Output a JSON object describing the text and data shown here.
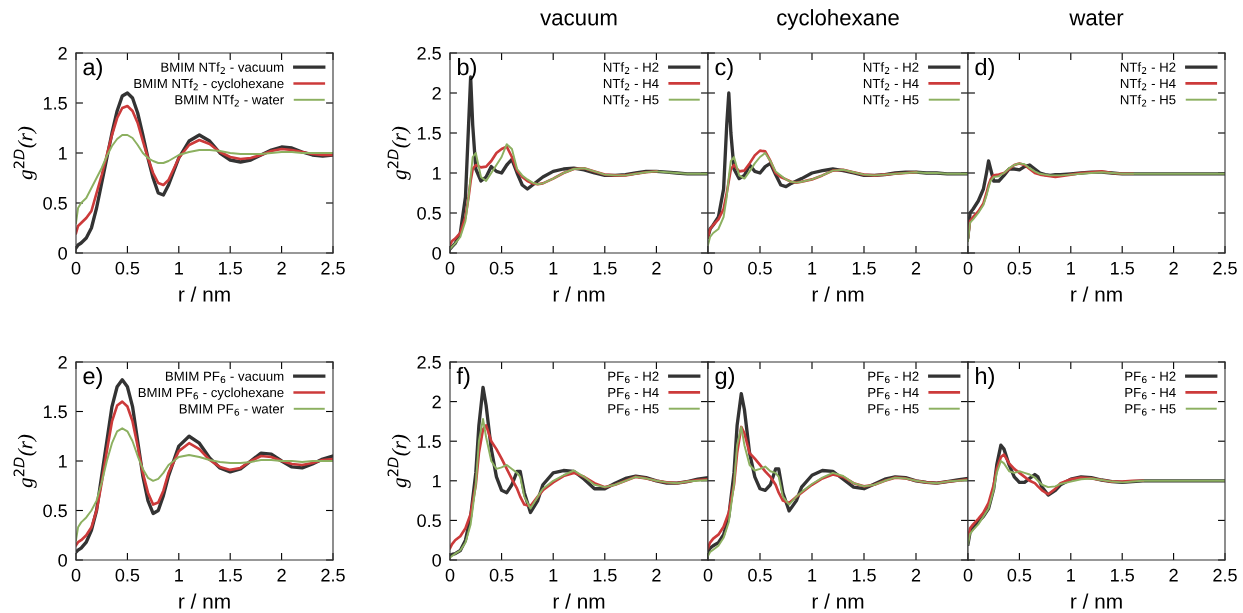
{
  "chart_data": [
    {
      "type": "line",
      "xlabel": "r / nm",
      "ylabel": "g$^{2D}$(r)",
      "annotations": [
        "a)"
      ],
      "legend": "top right",
      "xlim": [
        0,
        2.5
      ],
      "ylim": [
        0,
        2
      ],
      "xticks": [
        0,
        0.5,
        1,
        1.5,
        2,
        2.5
      ],
      "yticks": [
        0,
        0.5,
        1,
        1.5,
        2
      ],
      "x": [
        0,
        0.02,
        0.05,
        0.1,
        0.15,
        0.2,
        0.25,
        0.3,
        0.35,
        0.4,
        0.45,
        0.5,
        0.55,
        0.6,
        0.65,
        0.7,
        0.75,
        0.8,
        0.85,
        0.9,
        1.0,
        1.1,
        1.2,
        1.3,
        1.4,
        1.5,
        1.6,
        1.7,
        1.8,
        1.9,
        2.0,
        2.1,
        2.2,
        2.3,
        2.4,
        2.5
      ],
      "series": [
        {
          "name": "BMIM NTf$_{2}$ - vacuum",
          "color": "#333333",
          "values": [
            0.05,
            0.08,
            0.1,
            0.15,
            0.25,
            0.45,
            0.7,
            0.95,
            1.2,
            1.42,
            1.57,
            1.6,
            1.55,
            1.4,
            1.18,
            0.95,
            0.75,
            0.6,
            0.58,
            0.68,
            0.95,
            1.12,
            1.18,
            1.12,
            1.0,
            0.93,
            0.91,
            0.93,
            0.98,
            1.03,
            1.06,
            1.05,
            1.01,
            0.98,
            0.97,
            0.98
          ]
        },
        {
          "name": "BMIM NTf$_{2}$ - cyclohexane",
          "color": "#cc3a3a",
          "values": [
            0.2,
            0.27,
            0.3,
            0.35,
            0.42,
            0.6,
            0.78,
            0.98,
            1.18,
            1.35,
            1.45,
            1.47,
            1.42,
            1.3,
            1.12,
            0.95,
            0.8,
            0.7,
            0.68,
            0.73,
            0.95,
            1.08,
            1.13,
            1.09,
            1.01,
            0.96,
            0.94,
            0.95,
            0.98,
            1.02,
            1.04,
            1.03,
            1.01,
            0.99,
            0.98,
            0.98
          ]
        },
        {
          "name": "BMIM NTf$_{2}$ - water",
          "color": "#8cb060",
          "values": [
            0.3,
            0.45,
            0.5,
            0.55,
            0.65,
            0.75,
            0.85,
            0.97,
            1.07,
            1.14,
            1.18,
            1.18,
            1.15,
            1.08,
            1.0,
            0.95,
            0.92,
            0.9,
            0.9,
            0.92,
            0.98,
            1.01,
            1.03,
            1.03,
            1.02,
            1.0,
            0.99,
            0.99,
            0.99,
            1.0,
            1.01,
            1.01,
            1.0,
            1.0,
            1.0,
            1.0
          ]
        }
      ]
    },
    {
      "type": "line",
      "title": "vacuum",
      "xlabel": "r / nm",
      "ylabel": "g$^{2D}$(r)",
      "annotations": [
        "b)"
      ],
      "legend": "top right",
      "xlim": [
        0,
        2.5
      ],
      "ylim": [
        0,
        2.5
      ],
      "xticks": [
        0,
        0.5,
        1,
        1.5,
        2
      ],
      "yticks": [
        0,
        0.5,
        1,
        1.5,
        2,
        2.5
      ],
      "x": [
        0,
        0.02,
        0.05,
        0.1,
        0.15,
        0.18,
        0.2,
        0.22,
        0.25,
        0.3,
        0.35,
        0.4,
        0.45,
        0.5,
        0.55,
        0.6,
        0.65,
        0.7,
        0.75,
        0.8,
        0.85,
        0.9,
        1.0,
        1.1,
        1.2,
        1.3,
        1.4,
        1.5,
        1.6,
        1.7,
        1.8,
        1.9,
        2.0,
        2.1,
        2.2,
        2.3,
        2.4,
        2.5
      ],
      "series": [
        {
          "name": "NTf$_{2}$ - H2",
          "color": "#333333",
          "values": [
            0.05,
            0.08,
            0.12,
            0.25,
            0.7,
            1.6,
            2.2,
            1.6,
            1.05,
            0.9,
            0.95,
            1.08,
            1.02,
            1.0,
            1.1,
            1.17,
            1.0,
            0.85,
            0.8,
            0.85,
            0.9,
            0.95,
            1.02,
            1.05,
            1.06,
            1.04,
            1.0,
            0.97,
            0.97,
            0.98,
            1.0,
            1.02,
            1.02,
            1.01,
            1.0,
            0.99,
            0.99,
            0.99
          ]
        },
        {
          "name": "NTf$_{2}$ - H4",
          "color": "#cc3a3a",
          "values": [
            0.1,
            0.15,
            0.18,
            0.25,
            0.45,
            0.7,
            0.9,
            1.05,
            1.1,
            1.07,
            1.08,
            1.15,
            1.25,
            1.3,
            1.33,
            1.2,
            1.03,
            0.95,
            0.9,
            0.87,
            0.86,
            0.87,
            0.93,
            1.0,
            1.05,
            1.06,
            1.02,
            0.98,
            0.97,
            0.97,
            0.99,
            1.01,
            1.02,
            null,
            null,
            null,
            null,
            null
          ]
        },
        {
          "name": "NTf$_{2}$ - H5",
          "color": "#8cb060",
          "values": [
            0.05,
            0.08,
            0.12,
            0.2,
            0.4,
            0.7,
            0.95,
            1.2,
            1.25,
            0.95,
            0.9,
            1.0,
            1.1,
            1.2,
            1.36,
            1.3,
            1.05,
            0.97,
            0.92,
            0.88,
            0.86,
            0.87,
            0.93,
            1.0,
            1.05,
            1.06,
            1.02,
            0.98,
            0.97,
            0.97,
            0.99,
            1.01,
            1.02,
            1.01,
            1.0,
            0.99,
            0.99,
            0.99
          ]
        }
      ]
    },
    {
      "type": "line",
      "title": "cyclohexane",
      "xlabel": "r / nm",
      "annotations": [
        "c)"
      ],
      "legend": "top right",
      "tick_labels": "x",
      "xlim": [
        0,
        2.5
      ],
      "ylim": [
        0,
        2.5
      ],
      "xticks": [
        0,
        0.5,
        1,
        1.5,
        2
      ],
      "yticks": [
        0,
        0.5,
        1,
        1.5,
        2,
        2.5
      ],
      "x": [
        0,
        0.02,
        0.05,
        0.1,
        0.15,
        0.18,
        0.2,
        0.22,
        0.25,
        0.3,
        0.35,
        0.4,
        0.45,
        0.5,
        0.55,
        0.6,
        0.65,
        0.7,
        0.75,
        0.8,
        0.85,
        0.9,
        1.0,
        1.1,
        1.2,
        1.3,
        1.4,
        1.5,
        1.6,
        1.7,
        1.8,
        1.9,
        2.0,
        2.1,
        2.2,
        2.3,
        2.4,
        2.5
      ],
      "series": [
        {
          "name": "NTf$_{2}$ - H2",
          "color": "#333333",
          "values": [
            0.2,
            0.3,
            0.35,
            0.45,
            0.8,
            1.6,
            2.0,
            1.5,
            1.05,
            0.93,
            0.97,
            1.1,
            1.02,
            1.0,
            1.08,
            1.12,
            0.98,
            0.85,
            0.83,
            0.87,
            0.9,
            0.93,
            1.0,
            1.03,
            1.05,
            1.03,
            1.0,
            0.97,
            0.97,
            0.98,
            1.0,
            1.01,
            1.01,
            1.0,
            1.0,
            0.99,
            0.99,
            0.99
          ]
        },
        {
          "name": "NTf$_{2}$ - H4",
          "color": "#cc3a3a",
          "values": [
            0.2,
            0.3,
            0.35,
            0.42,
            0.55,
            0.75,
            0.9,
            1.05,
            1.1,
            1.02,
            1.03,
            1.12,
            1.22,
            1.28,
            1.27,
            1.15,
            1.0,
            0.95,
            0.92,
            0.89,
            0.88,
            0.89,
            0.92,
            0.97,
            1.03,
            1.04,
            1.01,
            0.98,
            0.97,
            0.98,
            0.99,
            1.0,
            1.01,
            null,
            null,
            null,
            null,
            null
          ]
        },
        {
          "name": "NTf$_{2}$ - H5",
          "color": "#8cb060",
          "values": [
            0.1,
            0.2,
            0.25,
            0.3,
            0.45,
            0.7,
            0.95,
            1.15,
            1.2,
            0.97,
            0.93,
            1.02,
            1.12,
            1.2,
            1.25,
            1.15,
            1.02,
            0.97,
            0.92,
            0.89,
            0.88,
            0.89,
            0.92,
            0.97,
            1.03,
            1.04,
            1.01,
            0.98,
            0.97,
            0.98,
            0.99,
            1.0,
            1.01,
            1.0,
            1.0,
            0.99,
            0.99,
            0.99
          ]
        }
      ]
    },
    {
      "type": "line",
      "title": "water",
      "xlabel": "r / nm",
      "annotations": [
        "d)"
      ],
      "legend": "top right",
      "tick_labels": "x",
      "xlim": [
        0,
        2.5
      ],
      "ylim": [
        0,
        2.5
      ],
      "xticks": [
        0,
        0.5,
        1,
        1.5,
        2,
        2.5
      ],
      "yticks": [
        0,
        0.5,
        1,
        1.5,
        2,
        2.5
      ],
      "x": [
        0,
        0.02,
        0.05,
        0.1,
        0.15,
        0.18,
        0.2,
        0.22,
        0.25,
        0.3,
        0.35,
        0.4,
        0.45,
        0.5,
        0.55,
        0.6,
        0.65,
        0.7,
        0.75,
        0.8,
        0.85,
        0.9,
        1.0,
        1.1,
        1.2,
        1.3,
        1.4,
        1.5,
        1.6,
        1.7,
        1.8,
        1.9,
        2.0,
        2.1,
        2.2,
        2.3,
        2.4,
        2.5
      ],
      "series": [
        {
          "name": "NTf$_{2}$ - H2",
          "color": "#333333",
          "values": [
            0.2,
            0.5,
            0.55,
            0.65,
            0.8,
            1.0,
            1.15,
            1.05,
            0.9,
            0.9,
            0.97,
            1.05,
            1.05,
            1.04,
            1.08,
            1.1,
            1.05,
            1.0,
            0.98,
            0.97,
            0.98,
            0.98,
            0.99,
            1.0,
            1.01,
            1.01,
            1.0,
            0.99,
            0.99,
            0.99,
            0.99,
            0.99,
            0.99,
            0.99,
            0.99,
            0.99,
            0.99,
            0.99
          ]
        },
        {
          "name": "NTf$_{2}$ - H4",
          "color": "#cc3a3a",
          "values": [
            0.2,
            0.4,
            0.45,
            0.52,
            0.62,
            0.75,
            0.85,
            0.92,
            0.97,
            0.98,
            1.0,
            1.05,
            1.1,
            1.12,
            1.1,
            1.05,
            1.0,
            0.98,
            0.97,
            0.96,
            0.95,
            0.96,
            0.98,
            1.0,
            1.01,
            1.02,
            1.0,
            0.99,
            0.99,
            null,
            null,
            null,
            null,
            null,
            null,
            null,
            null,
            null
          ]
        },
        {
          "name": "NTf$_{2}$ - H5",
          "color": "#8cb060",
          "values": [
            0.15,
            0.38,
            0.42,
            0.5,
            0.6,
            0.72,
            0.82,
            0.9,
            0.95,
            0.96,
            1.0,
            1.06,
            1.1,
            1.12,
            1.11,
            1.06,
            1.02,
            0.99,
            0.98,
            0.97,
            0.97,
            0.97,
            0.98,
            0.99,
            1.0,
            1.01,
            1.0,
            0.99,
            0.99,
            0.99,
            0.99,
            0.99,
            0.99,
            0.99,
            0.99,
            0.99,
            0.99,
            0.99
          ]
        }
      ]
    },
    {
      "type": "line",
      "xlabel": "r / nm",
      "ylabel": "g$^{2D}$(r)",
      "annotations": [
        "e)"
      ],
      "legend": "top right",
      "xlim": [
        0,
        2.5
      ],
      "ylim": [
        0,
        2
      ],
      "xticks": [
        0,
        0.5,
        1,
        1.5,
        2,
        2.5
      ],
      "yticks": [
        0,
        0.5,
        1,
        1.5,
        2
      ],
      "x": [
        0,
        0.02,
        0.05,
        0.1,
        0.15,
        0.2,
        0.25,
        0.3,
        0.35,
        0.4,
        0.45,
        0.5,
        0.55,
        0.6,
        0.65,
        0.7,
        0.75,
        0.8,
        0.85,
        0.9,
        1.0,
        1.1,
        1.2,
        1.3,
        1.4,
        1.5,
        1.6,
        1.7,
        1.8,
        1.9,
        2.0,
        2.1,
        2.2,
        2.3,
        2.4,
        2.5
      ],
      "series": [
        {
          "name": "BMIM PF$_{6}$ - vacuum",
          "color": "#333333",
          "values": [
            0.08,
            0.1,
            0.12,
            0.18,
            0.3,
            0.5,
            0.85,
            1.2,
            1.55,
            1.75,
            1.82,
            1.75,
            1.55,
            1.2,
            0.85,
            0.6,
            0.47,
            0.5,
            0.65,
            0.85,
            1.15,
            1.25,
            1.18,
            1.03,
            0.93,
            0.89,
            0.92,
            1.0,
            1.08,
            1.07,
            1.0,
            0.94,
            0.93,
            0.97,
            1.02,
            1.05
          ]
        },
        {
          "name": "BMIM PF$_{6}$ - cyclohexane",
          "color": "#cc3a3a",
          "values": [
            0.15,
            0.18,
            0.2,
            0.25,
            0.33,
            0.5,
            0.78,
            1.1,
            1.4,
            1.56,
            1.6,
            1.55,
            1.4,
            1.15,
            0.88,
            0.68,
            0.56,
            0.58,
            0.7,
            0.88,
            1.1,
            1.18,
            1.12,
            1.01,
            0.94,
            0.91,
            0.93,
            1.0,
            1.05,
            1.04,
            1.0,
            0.97,
            0.96,
            0.98,
            1.01,
            1.02
          ]
        },
        {
          "name": "BMIM PF$_{6}$ - water",
          "color": "#8cb060",
          "values": [
            0.2,
            0.33,
            0.38,
            0.43,
            0.5,
            0.6,
            0.78,
            1.0,
            1.18,
            1.3,
            1.33,
            1.3,
            1.2,
            1.05,
            0.92,
            0.83,
            0.8,
            0.82,
            0.88,
            0.96,
            1.04,
            1.06,
            1.04,
            1.01,
            0.99,
            0.98,
            0.98,
            0.99,
            1.01,
            1.01,
            1.0,
            1.0,
            0.99,
            1.0,
            1.0,
            1.0
          ]
        }
      ]
    },
    {
      "type": "line",
      "xlabel": "r / nm",
      "ylabel": "g$^{2D}$(r)",
      "annotations": [
        "f)"
      ],
      "legend": "top right",
      "xlim": [
        0,
        2.5
      ],
      "ylim": [
        0,
        2.5
      ],
      "xticks": [
        0,
        0.5,
        1,
        1.5,
        2
      ],
      "yticks": [
        0,
        0.5,
        1,
        1.5,
        2,
        2.5
      ],
      "x": [
        0,
        0.02,
        0.05,
        0.1,
        0.15,
        0.2,
        0.25,
        0.28,
        0.32,
        0.35,
        0.4,
        0.45,
        0.5,
        0.55,
        0.6,
        0.65,
        0.68,
        0.72,
        0.78,
        0.85,
        0.9,
        1.0,
        1.1,
        1.2,
        1.3,
        1.4,
        1.5,
        1.6,
        1.7,
        1.8,
        1.9,
        2.0,
        2.1,
        2.2,
        2.3,
        2.4,
        2.5
      ],
      "series": [
        {
          "name": "PF$_{6}$ - H2",
          "color": "#333333",
          "values": [
            0.05,
            0.07,
            0.08,
            0.12,
            0.25,
            0.55,
            1.1,
            1.7,
            2.18,
            1.95,
            1.4,
            1.05,
            0.88,
            0.85,
            0.95,
            1.12,
            1.12,
            0.85,
            0.6,
            0.75,
            0.95,
            1.1,
            1.13,
            1.12,
            1.02,
            0.9,
            0.9,
            0.97,
            1.03,
            1.06,
            1.04,
            1.0,
            0.97,
            0.97,
            0.99,
            1.02,
            1.04
          ]
        },
        {
          "name": "PF$_{6}$ - H4",
          "color": "#cc3a3a",
          "values": [
            0.15,
            0.2,
            0.25,
            0.3,
            0.4,
            0.58,
            0.95,
            1.35,
            1.65,
            1.7,
            1.5,
            1.4,
            1.28,
            1.15,
            1.02,
            0.9,
            0.8,
            0.7,
            0.68,
            0.8,
            0.88,
            0.98,
            1.06,
            1.1,
            1.05,
            0.97,
            0.92,
            0.95,
            1.0,
            1.05,
            1.03,
            1.0,
            0.98,
            0.97,
            0.99,
            1.01,
            1.02
          ]
        },
        {
          "name": "PF$_{6}$ - H5",
          "color": "#8cb060",
          "values": [
            0.03,
            0.05,
            0.08,
            0.12,
            0.22,
            0.45,
            0.95,
            1.5,
            1.78,
            1.55,
            1.25,
            1.15,
            1.17,
            1.2,
            1.15,
            1.1,
            1.05,
            0.8,
            0.65,
            0.8,
            0.9,
            1.0,
            1.07,
            1.13,
            1.05,
            0.95,
            0.92,
            0.95,
            1.0,
            1.05,
            1.03,
            1.0,
            0.98,
            0.97,
            0.99,
            1.0,
            1.01
          ]
        }
      ]
    },
    {
      "type": "line",
      "xlabel": "r / nm",
      "annotations": [
        "g)"
      ],
      "legend": "top right",
      "tick_labels": "x",
      "xlim": [
        0,
        2.5
      ],
      "ylim": [
        0,
        2.5
      ],
      "xticks": [
        0,
        0.5,
        1,
        1.5,
        2
      ],
      "yticks": [
        0,
        0.5,
        1,
        1.5,
        2,
        2.5
      ],
      "x": [
        0,
        0.02,
        0.05,
        0.1,
        0.15,
        0.2,
        0.25,
        0.28,
        0.32,
        0.35,
        0.4,
        0.45,
        0.5,
        0.55,
        0.6,
        0.65,
        0.68,
        0.72,
        0.78,
        0.85,
        0.9,
        1.0,
        1.1,
        1.2,
        1.3,
        1.4,
        1.5,
        1.6,
        1.7,
        1.8,
        1.9,
        2.0,
        2.1,
        2.2,
        2.3,
        2.4,
        2.5
      ],
      "series": [
        {
          "name": "PF$_{6}$ - H2",
          "color": "#333333",
          "values": [
            0.1,
            0.15,
            0.18,
            0.22,
            0.32,
            0.55,
            1.1,
            1.7,
            2.1,
            1.9,
            1.35,
            1.05,
            0.9,
            0.88,
            0.95,
            1.15,
            1.15,
            0.85,
            0.62,
            0.75,
            0.92,
            1.07,
            1.13,
            1.12,
            1.02,
            0.92,
            0.9,
            0.96,
            1.02,
            1.05,
            1.04,
            1.0,
            0.98,
            0.97,
            0.99,
            1.01,
            1.03
          ]
        },
        {
          "name": "PF$_{6}$ - H4",
          "color": "#cc3a3a",
          "values": [
            0.15,
            0.22,
            0.27,
            0.32,
            0.42,
            0.6,
            0.95,
            1.35,
            1.68,
            1.6,
            1.35,
            1.28,
            1.2,
            1.12,
            1.05,
            0.95,
            0.85,
            0.75,
            0.72,
            0.8,
            0.85,
            0.95,
            1.03,
            1.08,
            1.05,
            0.97,
            0.93,
            0.95,
            1.0,
            1.04,
            1.03,
            1.0,
            0.98,
            0.97,
            0.99,
            1.0,
            1.02
          ]
        },
        {
          "name": "PF$_{6}$ - H5",
          "color": "#8cb060",
          "values": [
            0.05,
            0.1,
            0.13,
            0.18,
            0.28,
            0.48,
            0.95,
            1.45,
            1.68,
            1.45,
            1.2,
            1.13,
            1.15,
            1.18,
            1.12,
            1.1,
            1.05,
            0.8,
            0.7,
            0.8,
            0.86,
            0.96,
            1.04,
            1.1,
            1.06,
            0.97,
            0.93,
            0.95,
            1.0,
            1.04,
            1.03,
            1.0,
            0.98,
            0.97,
            0.99,
            1.0,
            1.01
          ]
        }
      ]
    },
    {
      "type": "line",
      "xlabel": "r / nm",
      "annotations": [
        "h)"
      ],
      "legend": "top right",
      "tick_labels": "x",
      "xlim": [
        0,
        2.5
      ],
      "ylim": [
        0,
        2.5
      ],
      "xticks": [
        0,
        0.5,
        1,
        1.5,
        2,
        2.5
      ],
      "yticks": [
        0,
        0.5,
        1,
        1.5,
        2,
        2.5
      ],
      "x": [
        0,
        0.02,
        0.05,
        0.1,
        0.15,
        0.2,
        0.25,
        0.28,
        0.32,
        0.35,
        0.4,
        0.45,
        0.5,
        0.55,
        0.6,
        0.65,
        0.68,
        0.72,
        0.78,
        0.85,
        0.9,
        1.0,
        1.1,
        1.2,
        1.3,
        1.4,
        1.5,
        1.6,
        1.7,
        1.8,
        1.9,
        2.0,
        2.1,
        2.2,
        2.3,
        2.4,
        2.5
      ],
      "series": [
        {
          "name": "PF$_{6}$ - H2",
          "color": "#333333",
          "values": [
            0.2,
            0.35,
            0.4,
            0.48,
            0.55,
            0.65,
            0.9,
            1.2,
            1.45,
            1.4,
            1.2,
            1.05,
            0.98,
            0.98,
            1.03,
            1.08,
            1.05,
            0.92,
            0.82,
            0.88,
            0.95,
            1.02,
            1.05,
            1.04,
            1.01,
            0.99,
            0.98,
            0.99,
            1.0,
            1.0,
            1.0,
            1.0,
            1.0,
            1.0,
            1.0,
            1.0,
            1.0
          ]
        },
        {
          "name": "PF$_{6}$ - H4",
          "color": "#cc3a3a",
          "values": [
            0.25,
            0.4,
            0.45,
            0.52,
            0.6,
            0.72,
            0.95,
            1.15,
            1.3,
            1.33,
            1.22,
            1.15,
            1.1,
            1.05,
            1.0,
            0.97,
            0.93,
            0.88,
            0.83,
            0.9,
            0.97,
            1.02,
            1.04,
            1.03,
            1.01,
            0.99,
            0.99,
            1.0,
            1.0,
            null,
            null,
            null,
            null,
            null,
            null,
            null,
            null
          ]
        },
        {
          "name": "PF$_{6}$ - H5",
          "color": "#8cb060",
          "values": [
            0.2,
            0.33,
            0.38,
            0.45,
            0.55,
            0.65,
            0.88,
            1.1,
            1.25,
            1.22,
            1.12,
            1.1,
            1.12,
            1.1,
            1.08,
            1.04,
            1.0,
            0.95,
            0.92,
            0.93,
            0.96,
            0.99,
            1.02,
            1.03,
            1.01,
            0.99,
            0.98,
            0.99,
            1.0,
            1.0,
            1.0,
            1.0,
            1.0,
            1.0,
            1.0,
            1.0,
            1.0
          ]
        }
      ]
    }
  ]
}
